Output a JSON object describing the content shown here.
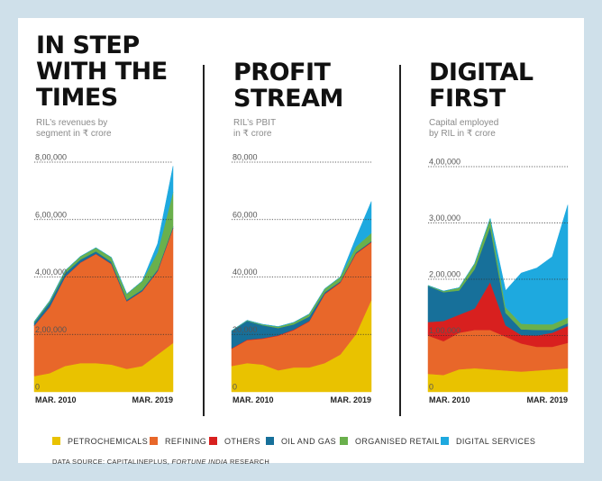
{
  "colors": {
    "petrochemicals": "#e9c200",
    "refining": "#e8672a",
    "others": "#d8201f",
    "oil_and_gas": "#17709a",
    "organised_retail": "#6ab04c",
    "digital_services": "#1ea9df"
  },
  "panels": [
    {
      "title_lines": [
        "IN STEP",
        "WITH THE",
        "TIMES"
      ],
      "subtitle_lines": [
        "RIL’s revenues by",
        "segment in ₹ crore"
      ]
    },
    {
      "title_lines": [
        "PROFIT",
        "STREAM"
      ],
      "subtitle_lines": [
        "RIL’s PBIT",
        "in ₹ crore"
      ]
    },
    {
      "title_lines": [
        "DIGITAL",
        "FIRST"
      ],
      "subtitle_lines": [
        "Capital employed",
        "by RIL in ₹ crore"
      ]
    }
  ],
  "legend": [
    {
      "label": "PETROCHEMICALS",
      "color": "#e9c200"
    },
    {
      "label": "REFINING",
      "color": "#e8672a"
    },
    {
      "label": "OTHERS",
      "color": "#d8201f"
    },
    {
      "label": "OIL AND GAS",
      "color": "#17709a"
    },
    {
      "label": "ORGANISED RETAIL",
      "color": "#6ab04c"
    },
    {
      "label": "DIGITAL SERVICES",
      "color": "#1ea9df"
    }
  ],
  "source": {
    "prefix": "DATA SOURCE: CAPITALINEPLUS, ",
    "italic": "FORTUNE INDIA",
    "suffix": " RESEARCH"
  },
  "chart_data": [
    {
      "type": "area",
      "stacked": true,
      "title": "IN STEP WITH THE TIMES",
      "subtitle": "RIL’s revenues by segment in ₹ crore",
      "x": [
        "2010",
        "2011",
        "2012",
        "2013",
        "2014",
        "2015",
        "2016",
        "2017",
        "2018",
        "2019"
      ],
      "x_tick_labels": [
        "MAR. 2010",
        "MAR. 2019"
      ],
      "ylim": [
        0,
        800000
      ],
      "y_ticks": [
        "0",
        "2,00,000",
        "4,00,000",
        "6,00,000",
        "8,00,000"
      ],
      "grid": true,
      "series": [
        {
          "name": "PETROCHEMICALS",
          "values": [
            55000,
            65000,
            90000,
            100000,
            100000,
            95000,
            80000,
            90000,
            130000,
            170000
          ]
        },
        {
          "name": "REFINING",
          "values": [
            175000,
            230000,
            310000,
            350000,
            380000,
            350000,
            235000,
            260000,
            290000,
            400000
          ]
        },
        {
          "name": "OTHERS",
          "values": [
            1000,
            1000,
            1000,
            1000,
            1000,
            1000,
            1000,
            1000,
            1000,
            1000
          ]
        },
        {
          "name": "OIL AND GAS",
          "values": [
            10000,
            15000,
            12000,
            10000,
            8000,
            7000,
            5000,
            5000,
            5000,
            5000
          ]
        },
        {
          "name": "ORGANISED RETAIL",
          "values": [
            4000,
            6000,
            9000,
            11000,
            13000,
            15000,
            20000,
            30000,
            60000,
            120000
          ]
        },
        {
          "name": "DIGITAL SERVICES",
          "values": [
            0,
            0,
            0,
            0,
            0,
            0,
            0,
            0,
            30000,
            90000
          ]
        }
      ]
    },
    {
      "type": "area",
      "stacked": true,
      "title": "PROFIT STREAM",
      "subtitle": "RIL’s PBIT in ₹ crore",
      "x": [
        "2010",
        "2011",
        "2012",
        "2013",
        "2014",
        "2015",
        "2016",
        "2017",
        "2018",
        "2019"
      ],
      "x_tick_labels": [
        "MAR. 2010",
        "MAR. 2019"
      ],
      "ylim": [
        0,
        80000
      ],
      "y_ticks": [
        "0",
        "20,000",
        "40,000",
        "60,000",
        "80,000"
      ],
      "grid": true,
      "series": [
        {
          "name": "PETROCHEMICALS",
          "values": [
            9000,
            10000,
            9500,
            7500,
            8500,
            8500,
            10000,
            13000,
            20000,
            32000
          ]
        },
        {
          "name": "REFINING",
          "values": [
            6000,
            8000,
            9000,
            12000,
            13000,
            16000,
            24000,
            25000,
            28000,
            20000
          ]
        },
        {
          "name": "OTHERS",
          "values": [
            200,
            200,
            200,
            200,
            200,
            200,
            200,
            200,
            200,
            200
          ]
        },
        {
          "name": "OIL AND GAS",
          "values": [
            6000,
            6500,
            4500,
            2500,
            1800,
            1500,
            500,
            300,
            300,
            300
          ]
        },
        {
          "name": "ORGANISED RETAIL",
          "values": [
            100,
            200,
            300,
            500,
            700,
            900,
            1200,
            1500,
            2000,
            2800
          ]
        },
        {
          "name": "DIGITAL SERVICES",
          "values": [
            0,
            0,
            0,
            0,
            0,
            0,
            0,
            0,
            3000,
            11000
          ]
        }
      ]
    },
    {
      "type": "area",
      "stacked": true,
      "title": "DIGITAL FIRST",
      "subtitle": "Capital employed by RIL in ₹ crore",
      "x": [
        "2010",
        "2011",
        "2012",
        "2013",
        "2014",
        "2015",
        "2016",
        "2017",
        "2018",
        "2019"
      ],
      "x_tick_labels": [
        "MAR. 2010",
        "MAR. 2019"
      ],
      "ylim": [
        0,
        400000
      ],
      "y_ticks": [
        "0",
        "1,00,000",
        "2,00,000",
        "3,00,000",
        "4,00,000"
      ],
      "grid": true,
      "series": [
        {
          "name": "PETROCHEMICALS",
          "values": [
            32000,
            30000,
            40000,
            42000,
            40000,
            38000,
            36000,
            38000,
            40000,
            42000
          ]
        },
        {
          "name": "REFINING",
          "values": [
            68000,
            60000,
            65000,
            68000,
            70000,
            60000,
            50000,
            42000,
            40000,
            45000
          ]
        },
        {
          "name": "OTHERS",
          "values": [
            24000,
            36000,
            32000,
            38000,
            85000,
            20000,
            15000,
            20000,
            25000,
            30000
          ]
        },
        {
          "name": "OIL AND GAS",
          "values": [
            64000,
            51000,
            43000,
            70000,
            98000,
            22000,
            10000,
            10000,
            5000,
            5000
          ]
        },
        {
          "name": "ORGANISED RETAIL",
          "values": [
            1000,
            2000,
            5000,
            10000,
            15000,
            10000,
            10000,
            10000,
            10000,
            10000
          ]
        },
        {
          "name": "DIGITAL SERVICES",
          "values": [
            0,
            0,
            0,
            0,
            0,
            30000,
            90000,
            100000,
            120000,
            200000
          ]
        }
      ]
    }
  ]
}
